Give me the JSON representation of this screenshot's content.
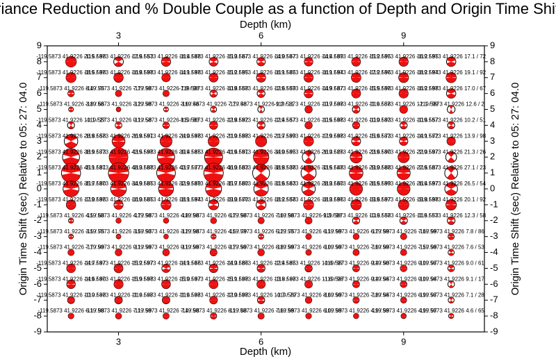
{
  "chart_data": {
    "type": "beachball-grid",
    "title": "Variance Reduction and % Double Couple as a function of Depth and Origin Time Shift",
    "x_label": "Depth (km)",
    "y_label": "Origin Time Shift (sec) Relative to 05: 27: 04.0",
    "xlim": [
      1.5,
      10.7
    ],
    "ylim": [
      -9,
      9
    ],
    "xticks": [
      3,
      6,
      9
    ],
    "yticks": [
      -9,
      -8,
      -7,
      -6,
      -5,
      -4,
      -3,
      -2,
      -1,
      0,
      1,
      2,
      3,
      4,
      5,
      6,
      7,
      8,
      9
    ],
    "fill_color": "#ee1111",
    "x": [
      2,
      3,
      4,
      5,
      6,
      7,
      8,
      9,
      10
    ],
    "rows": [
      {
        "y": 8,
        "labels": [
          "-119.5873 41.9226 20.5 / 98",
          "-119.5873 41.9226 17.6 / 53",
          "-119.5873 41.9226 16.4 / 88",
          "-119.5873 41.9226 15.3 / 67",
          "-119.5873 41.9226 14.0 / 67",
          "-119.5873 41.9226 14.4 / 89",
          "-119.5873 41.9226 15.2 / 95",
          "-119.5873 41.9226 16.2 / 95",
          "-119.5873 41.9226 17.1 / 72"
        ],
        "vr": [
          20.5,
          17.6,
          16.4,
          15.3,
          14.0,
          14.4,
          15.2,
          16.2,
          17.1
        ],
        "dc": [
          98,
          53,
          88,
          67,
          67,
          89,
          95,
          95,
          72
        ]
      },
      {
        "y": 7,
        "labels": [
          "-119.5873 41.9226 18.5 / 98",
          "-119.5873 41.9226 16.8 / 98",
          "-119.5873 41.9226 14.1 / 98",
          "-119.5873 41.9226 15.2 / 95",
          "-119.5873 41.9226 16.1 / 85",
          "-119.5873 41.9226 16.1 / 94",
          "-119.5873 41.9226 17.2 / 96",
          "-119.5873 41.9226 18.2 / 94",
          "-119.5873 41.9226 19.1 / 92"
        ],
        "vr": [
          18.5,
          16.8,
          14.1,
          15.2,
          16.1,
          16.1,
          17.2,
          18.2,
          19.1
        ],
        "dc": [
          98,
          98,
          98,
          95,
          85,
          94,
          96,
          94,
          92
        ]
      },
      {
        "y": 6,
        "labels": [
          "-119.5873 41.9226 8.4 / 75",
          "-119.5873 41.9226 7.7 / 98",
          "-119.5873 41.9226 7.9 / 98",
          "-119.5873 41.9226 10.8 / 58",
          "-119.5873 41.9226 12.6 / 59",
          "-119.5873 41.9226 14.9 / 87",
          "-119.5873 41.9226 15.5 / 98",
          "-119.5873 41.9226 16.2 / 98",
          "-119.5873 41.9226 17.0 / 67"
        ],
        "vr": [
          8.4,
          7.7,
          7.9,
          10.8,
          12.6,
          14.9,
          15.5,
          16.2,
          17.0
        ],
        "dc": [
          75,
          98,
          98,
          58,
          59,
          87,
          98,
          98,
          67
        ]
      },
      {
        "y": 5,
        "labels": [
          "-119.5873 41.9226 3.8 / 66",
          "-119.5873 41.9226 3.2 / 98",
          "-119.5873 41.9226 3.6 / 46",
          "-119.5873 41.9226 7.7 / 48",
          "-119.5873 41.9226 9.2 / 11",
          "-119.5873 41.9226 10.7 / 98",
          "-119.5873 41.9226 11.6 / 58",
          "-119.5873 41.9226 12.1 / 99",
          "-119.5873 41.9226 12.6 / 2"
        ],
        "vr": [
          3.8,
          3.2,
          3.6,
          7.7,
          9.2,
          10.7,
          11.6,
          12.1,
          12.6
        ],
        "dc": [
          66,
          98,
          46,
          48,
          11,
          98,
          58,
          99,
          2
        ]
      },
      {
        "y": 4,
        "labels": [
          "-119.5873 41.9226 10.1 / 27",
          "-119.5873 41.9226 9.1 / 58",
          "-119.5873 41.9226 8.5 / 83",
          "-119.5873 41.9226 12.8 / 92",
          "-119.5873 41.9226 12.4 / 57",
          "-119.5873 41.9226 10.5 / 98",
          "-119.5873 41.9226 10.0 / 93",
          "-119.5873 41.9226 10.6 / 57",
          "-119.5873 41.9226 10.2 / 51"
        ],
        "vr": [
          10.1,
          9.1,
          8.5,
          12.8,
          12.4,
          10.5,
          10.0,
          10.6,
          10.2
        ],
        "dc": [
          27,
          58,
          83,
          92,
          57,
          98,
          93,
          57,
          51
        ]
      },
      {
        "y": 3,
        "labels": [
          "-119.5873 41.9226 28.8 / 58",
          "-119.5873 41.9226 26.8 / 91",
          "-119.5873 41.9226 24.0 / 98",
          "-119.5873 41.9226 21.0 / 98",
          "-119.5873 41.9226 21.7 / 99",
          "-119.5873 41.9226 17.9 / 98",
          "-119.5873 41.9226 15.6 / 73",
          "-119.5873 41.9226 14.1 / 72",
          "-119.5873 41.9226 13.9 / 98"
        ],
        "vr": [
          28.8,
          26.8,
          24.0,
          21.0,
          21.7,
          17.9,
          15.6,
          14.1,
          13.9
        ],
        "dc": [
          58,
          91,
          98,
          98,
          99,
          98,
          73,
          72,
          98
        ]
      },
      {
        "y": 2,
        "labels": [
          "-119.5873 41.9226 38.9 / 73",
          "-119.5873 41.9226 43.5 / 98",
          "-119.5873 41.9226 39.4 / 85",
          "-119.5873 41.9226 41.6 / 91",
          "-119.5873 41.9226 34.0 / 95",
          "-119.5873 41.9226 26.3 / 26",
          "-119.5873 41.9226 23.6 / 90",
          "-119.5873 41.9226 22.0 / 97",
          "-119.5873 41.9226 21.3 / 26"
        ],
        "vr": [
          38.9,
          43.5,
          39.4,
          41.6,
          34.0,
          26.3,
          23.6,
          22.0,
          21.3
        ],
        "dc": [
          73,
          98,
          85,
          91,
          95,
          26,
          90,
          97,
          26
        ]
      },
      {
        "y": 1,
        "labels": [
          "-119.5873 41.9226 45.1 / 81",
          "-119.5873 41.9226 48.3 / 88",
          "-119.5873 41.9226 43.7 / 77",
          "-119.5873 41.9226 46.0 / 83",
          "-119.5873 41.9226 38.8 / 38",
          "-119.5873 41.9226 33.5 / 48",
          "-119.5873 41.9226 29.0 / 88",
          "-119.5873 41.9226 27.6 / 87",
          "-119.5873 41.9226 27.1 / 23"
        ],
        "vr": [
          45.1,
          48.3,
          43.7,
          46.0,
          38.8,
          33.5,
          29.0,
          27.6,
          27.1
        ],
        "dc": [
          81,
          88,
          77,
          83,
          38,
          48,
          88,
          87,
          23
        ]
      },
      {
        "y": 0,
        "labels": [
          "-119.5873 41.9226 35.7 / 80",
          "-119.5873 41.9226 34.9 / 85",
          "-119.5873 41.9226 32.9 / 89",
          "-119.5873 41.9226 35.7 / 80",
          "-119.5873 41.9226 31.6 / 63",
          "-119.5873 41.9226 28.3 / 60",
          "-119.5873 41.9226 26.5 / 99",
          "-119.5873 41.9226 26.4 / 97",
          "-119.5873 41.9226 26.5 / 54"
        ],
        "vr": [
          35.7,
          34.9,
          32.9,
          35.7,
          31.6,
          28.3,
          26.5,
          26.4,
          26.5
        ],
        "dc": [
          80,
          85,
          89,
          80,
          63,
          60,
          99,
          97,
          54
        ]
      },
      {
        "y": -1,
        "labels": [
          "-119.5873 41.9226 17.0 / 98",
          "-119.5873 41.9226 16.0 / 85",
          "-119.5873 41.9226 18.1 / 94",
          "-119.5873 41.9226 19.0 / 70",
          "-119.5873 41.9226 18.2 / 58",
          "-119.5873 41.9226 18.3 / 96",
          "-119.5873 41.9226 19.6 / 97",
          "-119.5873 41.9226 19.8 / 98",
          "-119.5873 41.9226 20.1 / 92"
        ],
        "vr": [
          17.0,
          16.0,
          18.1,
          19.0,
          18.2,
          18.3,
          19.6,
          19.8,
          20.1
        ],
        "dc": [
          98,
          85,
          94,
          70,
          58,
          96,
          97,
          98,
          92
        ]
      },
      {
        "y": -2,
        "labels": [
          "-119.5873 41.9226 4.5 / 68",
          "-119.5873 41.9226 4.7 / 98",
          "-119.5873 41.9226 4.8 / 98",
          "-119.5873 41.9226 6.7 / 98",
          "-119.5873 41.9226 7.6 / 98",
          "-119.5873 41.9226 9.3 / 98",
          "-119.5873 41.9226 10.6 / 58",
          "-119.5873 41.9226 11.6 / 53",
          "-119.5873 41.9226 12.3 / 58"
        ],
        "vr": [
          4.5,
          4.7,
          4.8,
          6.7,
          7.6,
          9.3,
          10.6,
          11.6,
          12.3
        ],
        "dc": [
          68,
          98,
          98,
          98,
          98,
          98,
          58,
          53,
          58
        ]
      },
      {
        "y": -3,
        "labels": [
          "-119.5873 41.9226 3.5 / 75",
          "-119.5873 41.9226 3.5 / 93",
          "-119.5873 41.9226 3.2 / 98",
          "-119.5873 41.9226 4.5 / 79",
          "-119.5873 41.9226 5.2 / 75",
          "-119.5873 41.9226 6.1 / 99",
          "-119.5873 41.9226 6.7 / 99",
          "-119.5873 41.9226 7.6 / 99",
          "-119.5873 41.9226 7.8 / 86"
        ],
        "vr": [
          3.5,
          3.5,
          3.2,
          4.5,
          5.2,
          6.1,
          6.7,
          7.6,
          7.8
        ],
        "dc": [
          75,
          93,
          98,
          79,
          75,
          99,
          99,
          99,
          86
        ]
      },
      {
        "y": -4,
        "labels": [
          "-119.5873 41.9226 7.7 / 99",
          "-119.5873 41.9226 9.1 / 99",
          "-119.5873 41.9226 9.1 / 99",
          "-119.5873 41.9226 9.7 / 99",
          "-119.5873 41.9226 8.8 / 99",
          "-119.5873 41.9226 6.0 / 99",
          "-119.5873 41.9226 7.6 / 99",
          "-119.5873 41.9226 7.5 / 99",
          "-119.5873 41.9226 7.6 / 53"
        ],
        "vr": [
          7.7,
          9.1,
          9.1,
          9.7,
          8.8,
          6.0,
          7.6,
          7.5,
          7.6
        ],
        "dc": [
          99,
          99,
          99,
          99,
          99,
          99,
          99,
          99,
          53
        ]
      },
      {
        "y": -5,
        "labels": [
          "-119.5873 41.9226 14.7 / 97",
          "-119.5873 41.9226 15.2 / 97",
          "-119.5873 41.9226 14.1 / 66",
          "-119.5873 41.9226 14.3 / 86",
          "-119.5873 41.9226 12.4 / 85",
          "-119.5873 41.9226 10.6 / 97",
          "-119.5873 41.9226 9.4 / 90",
          "-119.5873 41.9226 9.0 / 97",
          "-119.5873 41.9226 9.0 / 61"
        ],
        "vr": [
          14.7,
          15.2,
          14.1,
          14.3,
          12.4,
          10.6,
          9.4,
          9.0,
          9.0
        ],
        "dc": [
          97,
          97,
          66,
          86,
          85,
          97,
          90,
          97,
          61
        ]
      },
      {
        "y": -6,
        "labels": [
          "-119.5873 41.9226 14.6 / 90",
          "-119.5873 41.9226 15.9 / 98",
          "-119.5873 41.9226 15.0 / 97",
          "-119.5873 41.9226 15.1 / 98",
          "-119.5873 41.9226 13.8 / 98",
          "-119.5873 41.9226 11.6 / 98",
          "-119.5873 41.9226 9.4 / 94",
          "-119.5873 41.9226 9.0 / 94",
          "-119.5873 41.9226 9.1 / 17"
        ],
        "vr": [
          14.6,
          15.9,
          15.0,
          15.1,
          13.8,
          11.6,
          9.4,
          9.0,
          9.1
        ],
        "dc": [
          90,
          98,
          97,
          98,
          98,
          98,
          94,
          94,
          17
        ]
      },
      {
        "y": -7,
        "labels": [
          "-119.5873 41.9226 10.0 / 98",
          "-119.5873 41.9226 11.6 / 98",
          "-119.5873 41.9226 11.6 / 98",
          "-119.5873 41.9226 12.0 / 98",
          "-119.5873 41.9226 10.7 / 79",
          "-119.5873 41.9226 8.6 / 99",
          "-119.5873 41.9226 7.8 / 94",
          "-119.5873 41.9226 6.9 / 97",
          "-119.5873 41.9226 7.1 / 28"
        ],
        "vr": [
          10.0,
          11.6,
          11.6,
          12.0,
          10.7,
          8.6,
          7.8,
          6.9,
          7.1
        ],
        "dc": [
          98,
          98,
          98,
          98,
          79,
          99,
          94,
          97,
          28
        ]
      },
      {
        "y": -8,
        "labels": [
          "-119.5873 41.9226 6.1 / 98",
          "-119.5873 41.9226 7.1 / 99",
          "-119.5873 41.9226 7.4 / 98",
          "-119.5873 41.9226 8.1 / 88",
          "-119.5873 41.9226 7.6 / 99",
          "-119.5873 41.9226 6.0 / 99",
          "-119.5873 41.9226 4.9 / 99",
          "-119.5873 41.9226 4.9 / 97",
          "-119.5873 41.9226 4.6 / 65"
        ],
        "vr": [
          6.1,
          7.1,
          7.4,
          8.1,
          7.6,
          6.0,
          4.9,
          4.9,
          4.6
        ],
        "dc": [
          98,
          99,
          98,
          88,
          99,
          99,
          99,
          97,
          65
        ]
      }
    ]
  }
}
